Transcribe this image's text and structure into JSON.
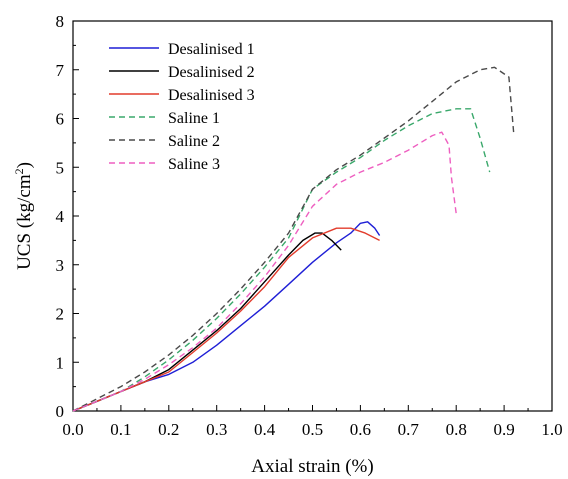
{
  "chart_data": {
    "type": "line",
    "title": "",
    "xlabel": "Axial strain (%)",
    "ylabel_main": "UCS (kg/cm",
    "ylabel_sup": "2",
    "ylabel_close": ")",
    "xlim": [
      0.0,
      1.0
    ],
    "ylim": [
      0,
      8
    ],
    "xticks": [
      "0.0",
      "0.1",
      "0.2",
      "0.3",
      "0.4",
      "0.5",
      "0.6",
      "0.7",
      "0.8",
      "0.9",
      "1.0"
    ],
    "yticks": [
      "0",
      "1",
      "2",
      "3",
      "4",
      "5",
      "6",
      "7",
      "8"
    ],
    "grid": false,
    "legend_position": "top-left",
    "series": [
      {
        "name": "Desalinised 1",
        "color": "#1f1fd6",
        "dash": "solid",
        "points": [
          [
            0,
            0
          ],
          [
            0.05,
            0.2
          ],
          [
            0.1,
            0.4
          ],
          [
            0.15,
            0.6
          ],
          [
            0.2,
            0.75
          ],
          [
            0.25,
            1.0
          ],
          [
            0.3,
            1.35
          ],
          [
            0.35,
            1.75
          ],
          [
            0.4,
            2.15
          ],
          [
            0.45,
            2.6
          ],
          [
            0.5,
            3.05
          ],
          [
            0.55,
            3.45
          ],
          [
            0.58,
            3.65
          ],
          [
            0.6,
            3.85
          ],
          [
            0.615,
            3.88
          ],
          [
            0.63,
            3.75
          ],
          [
            0.64,
            3.6
          ]
        ]
      },
      {
        "name": "Desalinised 2",
        "color": "#000000",
        "dash": "solid",
        "points": [
          [
            0,
            0
          ],
          [
            0.05,
            0.2
          ],
          [
            0.1,
            0.4
          ],
          [
            0.15,
            0.6
          ],
          [
            0.2,
            0.85
          ],
          [
            0.25,
            1.25
          ],
          [
            0.3,
            1.65
          ],
          [
            0.35,
            2.1
          ],
          [
            0.4,
            2.65
          ],
          [
            0.45,
            3.2
          ],
          [
            0.48,
            3.5
          ],
          [
            0.505,
            3.65
          ],
          [
            0.52,
            3.65
          ],
          [
            0.54,
            3.5
          ],
          [
            0.56,
            3.3
          ]
        ]
      },
      {
        "name": "Desalinised 3",
        "color": "#e23c2c",
        "dash": "solid",
        "points": [
          [
            0,
            0
          ],
          [
            0.05,
            0.2
          ],
          [
            0.1,
            0.4
          ],
          [
            0.15,
            0.6
          ],
          [
            0.2,
            0.8
          ],
          [
            0.25,
            1.2
          ],
          [
            0.3,
            1.6
          ],
          [
            0.35,
            2.05
          ],
          [
            0.4,
            2.55
          ],
          [
            0.45,
            3.15
          ],
          [
            0.5,
            3.55
          ],
          [
            0.55,
            3.75
          ],
          [
            0.58,
            3.75
          ],
          [
            0.61,
            3.65
          ],
          [
            0.64,
            3.5
          ]
        ]
      },
      {
        "name": "Saline 1",
        "color": "#3aa86b",
        "dash": "dashed",
        "points": [
          [
            0,
            0
          ],
          [
            0.05,
            0.2
          ],
          [
            0.1,
            0.4
          ],
          [
            0.15,
            0.7
          ],
          [
            0.2,
            1.05
          ],
          [
            0.25,
            1.45
          ],
          [
            0.3,
            1.9
          ],
          [
            0.35,
            2.4
          ],
          [
            0.4,
            2.95
          ],
          [
            0.45,
            3.55
          ],
          [
            0.5,
            4.55
          ],
          [
            0.55,
            4.9
          ],
          [
            0.6,
            5.2
          ],
          [
            0.65,
            5.55
          ],
          [
            0.7,
            5.85
          ],
          [
            0.75,
            6.1
          ],
          [
            0.8,
            6.2
          ],
          [
            0.83,
            6.2
          ],
          [
            0.85,
            5.6
          ],
          [
            0.87,
            4.9
          ]
        ]
      },
      {
        "name": "Saline 2",
        "color": "#4a4a4a",
        "dash": "dashed",
        "points": [
          [
            0,
            0
          ],
          [
            0.05,
            0.25
          ],
          [
            0.1,
            0.5
          ],
          [
            0.15,
            0.8
          ],
          [
            0.2,
            1.15
          ],
          [
            0.25,
            1.55
          ],
          [
            0.3,
            2.0
          ],
          [
            0.35,
            2.5
          ],
          [
            0.4,
            3.05
          ],
          [
            0.45,
            3.65
          ],
          [
            0.5,
            4.55
          ],
          [
            0.55,
            4.95
          ],
          [
            0.6,
            5.25
          ],
          [
            0.65,
            5.6
          ],
          [
            0.7,
            5.95
          ],
          [
            0.75,
            6.35
          ],
          [
            0.8,
            6.75
          ],
          [
            0.85,
            7.0
          ],
          [
            0.88,
            7.05
          ],
          [
            0.91,
            6.85
          ],
          [
            0.92,
            5.7
          ]
        ]
      },
      {
        "name": "Saline 3",
        "color": "#ee5fc0",
        "dash": "dashed",
        "points": [
          [
            0,
            0
          ],
          [
            0.05,
            0.2
          ],
          [
            0.1,
            0.4
          ],
          [
            0.15,
            0.65
          ],
          [
            0.2,
            0.95
          ],
          [
            0.25,
            1.3
          ],
          [
            0.3,
            1.7
          ],
          [
            0.35,
            2.2
          ],
          [
            0.4,
            2.75
          ],
          [
            0.45,
            3.4
          ],
          [
            0.5,
            4.2
          ],
          [
            0.55,
            4.65
          ],
          [
            0.6,
            4.9
          ],
          [
            0.65,
            5.1
          ],
          [
            0.7,
            5.35
          ],
          [
            0.75,
            5.65
          ],
          [
            0.77,
            5.72
          ],
          [
            0.785,
            5.45
          ],
          [
            0.79,
            4.8
          ],
          [
            0.8,
            4.05
          ]
        ]
      }
    ]
  }
}
